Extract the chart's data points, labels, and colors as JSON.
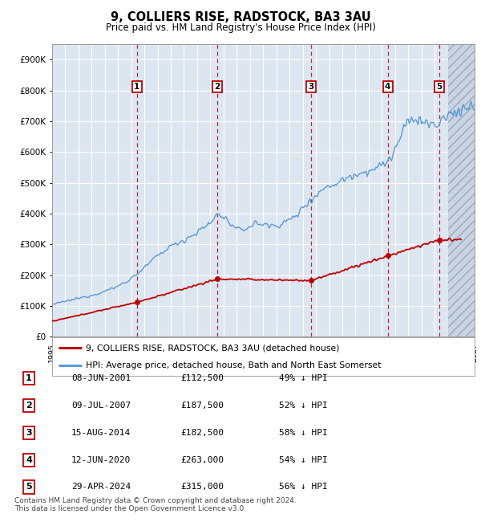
{
  "title": "9, COLLIERS RISE, RADSTOCK, BA3 3AU",
  "subtitle": "Price paid vs. HM Land Registry's House Price Index (HPI)",
  "background_color": "#ffffff",
  "plot_bg_color": "#dce6f1",
  "grid_color": "#ffffff",
  "hpi_line_color": "#5b9bd5",
  "price_line_color": "#c00000",
  "sale_points": [
    {
      "label": "1",
      "x": 2001.44,
      "price": 112500
    },
    {
      "label": "2",
      "x": 2007.52,
      "price": 187500
    },
    {
      "label": "3",
      "x": 2014.62,
      "price": 182500
    },
    {
      "label": "4",
      "x": 2020.44,
      "price": 263000
    },
    {
      "label": "5",
      "x": 2024.33,
      "price": 315000
    }
  ],
  "table_rows": [
    {
      "num": "1",
      "date": "08-JUN-2001",
      "price": "£112,500",
      "pct": "49% ↓ HPI"
    },
    {
      "num": "2",
      "date": "09-JUL-2007",
      "price": "£187,500",
      "pct": "52% ↓ HPI"
    },
    {
      "num": "3",
      "date": "15-AUG-2014",
      "price": "£182,500",
      "pct": "58% ↓ HPI"
    },
    {
      "num": "4",
      "date": "12-JUN-2020",
      "price": "£263,000",
      "pct": "54% ↓ HPI"
    },
    {
      "num": "5",
      "date": "29-APR-2024",
      "price": "£315,000",
      "pct": "56% ↓ HPI"
    }
  ],
  "legend_entries": [
    {
      "label": "9, COLLIERS RISE, RADSTOCK, BA3 3AU (detached house)",
      "color": "#c00000"
    },
    {
      "label": "HPI: Average price, detached house, Bath and North East Somerset",
      "color": "#5b9bd5"
    }
  ],
  "footnote": "Contains HM Land Registry data © Crown copyright and database right 2024.\nThis data is licensed under the Open Government Licence v3.0.",
  "xmin": 1995,
  "xmax": 2027,
  "ymin": 0,
  "ymax": 950000,
  "hatch_start": 2025.0,
  "ytick_vals": [
    0,
    100000,
    200000,
    300000,
    400000,
    500000,
    600000,
    700000,
    800000,
    900000
  ],
  "ytick_labels": [
    "£0",
    "£100K",
    "£200K",
    "£300K",
    "£400K",
    "£500K",
    "£600K",
    "£700K",
    "£800K",
    "£900K"
  ]
}
